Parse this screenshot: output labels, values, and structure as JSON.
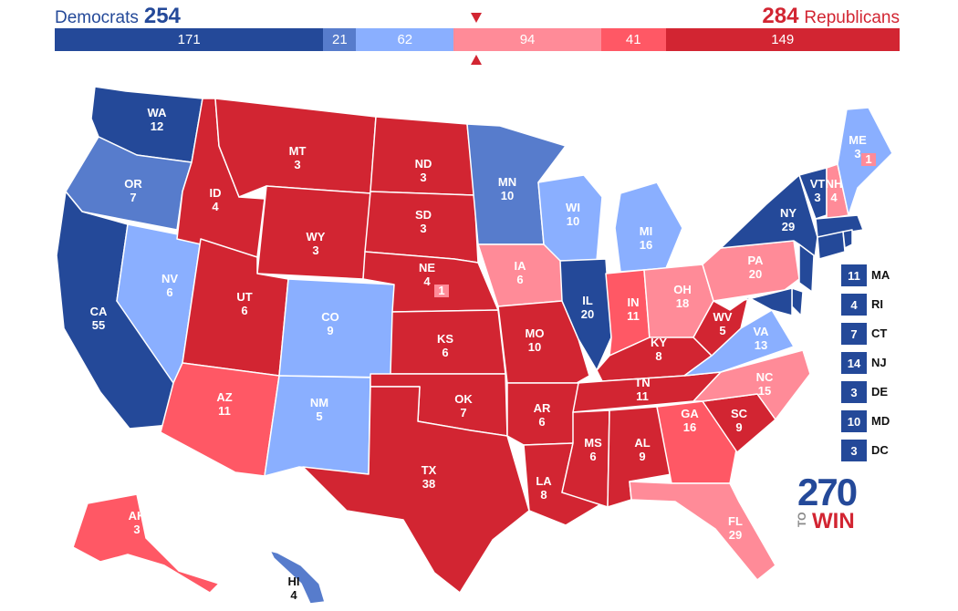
{
  "header": {
    "dem_label": "Democrats",
    "dem_total": "254",
    "rep_label": "Republicans",
    "rep_total": "284"
  },
  "bar": [
    {
      "value": "171",
      "color": "#244999"
    },
    {
      "value": "21",
      "color": "#577ccc"
    },
    {
      "value": "62",
      "color": "#8aafff"
    },
    {
      "value": "94",
      "color": "#ff8b98"
    },
    {
      "value": "41",
      "color": "#ff5865"
    },
    {
      "value": "149",
      "color": "#d22532"
    }
  ],
  "colors": {
    "safe_d": "#244999",
    "likely_d": "#577ccc",
    "lean_d": "#8aafff",
    "lean_r": "#ff8b98",
    "likely_r": "#ff5865",
    "safe_r": "#d22532"
  },
  "states": {
    "WA": {
      "abbr": "WA",
      "ev": "12"
    },
    "OR": {
      "abbr": "OR",
      "ev": "7"
    },
    "CA": {
      "abbr": "CA",
      "ev": "55"
    },
    "NV": {
      "abbr": "NV",
      "ev": "6"
    },
    "ID": {
      "abbr": "ID",
      "ev": "4"
    },
    "MT": {
      "abbr": "MT",
      "ev": "3"
    },
    "WY": {
      "abbr": "WY",
      "ev": "3"
    },
    "UT": {
      "abbr": "UT",
      "ev": "6"
    },
    "AZ": {
      "abbr": "AZ",
      "ev": "11"
    },
    "CO": {
      "abbr": "CO",
      "ev": "9"
    },
    "NM": {
      "abbr": "NM",
      "ev": "5"
    },
    "ND": {
      "abbr": "ND",
      "ev": "3"
    },
    "SD": {
      "abbr": "SD",
      "ev": "3"
    },
    "NE": {
      "abbr": "NE",
      "ev": "4",
      "cd": "1"
    },
    "KS": {
      "abbr": "KS",
      "ev": "6"
    },
    "OK": {
      "abbr": "OK",
      "ev": "7"
    },
    "TX": {
      "abbr": "TX",
      "ev": "38"
    },
    "MN": {
      "abbr": "MN",
      "ev": "10"
    },
    "IA": {
      "abbr": "IA",
      "ev": "6"
    },
    "MO": {
      "abbr": "MO",
      "ev": "10"
    },
    "AR": {
      "abbr": "AR",
      "ev": "6"
    },
    "LA": {
      "abbr": "LA",
      "ev": "8"
    },
    "WI": {
      "abbr": "WI",
      "ev": "10"
    },
    "IL": {
      "abbr": "IL",
      "ev": "20"
    },
    "MI": {
      "abbr": "MI",
      "ev": "16"
    },
    "IN": {
      "abbr": "IN",
      "ev": "11"
    },
    "OH": {
      "abbr": "OH",
      "ev": "18"
    },
    "KY": {
      "abbr": "KY",
      "ev": "8"
    },
    "TN": {
      "abbr": "TN",
      "ev": "11"
    },
    "MS": {
      "abbr": "MS",
      "ev": "6"
    },
    "AL": {
      "abbr": "AL",
      "ev": "9"
    },
    "GA": {
      "abbr": "GA",
      "ev": "16"
    },
    "FL": {
      "abbr": "FL",
      "ev": "29"
    },
    "SC": {
      "abbr": "SC",
      "ev": "9"
    },
    "NC": {
      "abbr": "NC",
      "ev": "15"
    },
    "VA": {
      "abbr": "VA",
      "ev": "13"
    },
    "WV": {
      "abbr": "WV",
      "ev": "5"
    },
    "PA": {
      "abbr": "PA",
      "ev": "20"
    },
    "NY": {
      "abbr": "NY",
      "ev": "29"
    },
    "VT": {
      "abbr": "VT",
      "ev": "3"
    },
    "NH": {
      "abbr": "NH",
      "ev": "4"
    },
    "ME": {
      "abbr": "ME",
      "ev": "3",
      "cd": "1"
    },
    "AK": {
      "abbr": "AK",
      "ev": "3"
    },
    "HI": {
      "abbr": "HI",
      "ev": "4"
    }
  },
  "small_states": [
    {
      "abbr": "MA",
      "ev": "11"
    },
    {
      "abbr": "RI",
      "ev": "4"
    },
    {
      "abbr": "CT",
      "ev": "7"
    },
    {
      "abbr": "NJ",
      "ev": "14"
    },
    {
      "abbr": "DE",
      "ev": "3"
    },
    {
      "abbr": "MD",
      "ev": "10"
    },
    {
      "abbr": "DC",
      "ev": "3"
    }
  ],
  "logo": {
    "number": "270",
    "to": "TO",
    "win": "WIN"
  }
}
